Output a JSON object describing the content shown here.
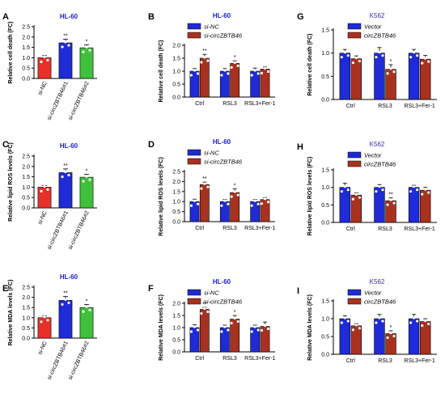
{
  "colors": {
    "red": "#e8302a",
    "blue": "#1f2bd6",
    "green": "#3fbf3a",
    "brown": "#a8321f",
    "title_hl60": "#1a1acc",
    "title_k562": "#3a2aa0",
    "dot": "#ffffff",
    "star": "#ff5a5a"
  },
  "chart_data": [
    {
      "id": "A",
      "panel_label": "A",
      "type": "bar",
      "title": "HL-60",
      "ylabel": "Relative cell death (FC)",
      "ylim": [
        0,
        2.5
      ],
      "yticks": [
        "0.0",
        "0.5",
        "1.0",
        "1.5",
        "2.0",
        "2.5"
      ],
      "categories": [
        "si-NC",
        "si-circZBTB46#1",
        "si-circZBTB46#2"
      ],
      "values": [
        1.0,
        1.72,
        1.48
      ],
      "errors": [
        0.1,
        0.18,
        0.15
      ],
      "stars": [
        "",
        "**",
        "*"
      ],
      "colors": [
        "red",
        "blue",
        "green"
      ]
    },
    {
      "id": "B",
      "panel_label": "B",
      "type": "bar",
      "title": "HL-60",
      "ylabel": "Relative cell death (FC)",
      "ylim": [
        0,
        2.0
      ],
      "yticks": [
        "0.0",
        "0.5",
        "1.0",
        "1.5",
        "2.0"
      ],
      "categories": [
        "Ctrl",
        "RSL3",
        "RSL3+Fer-1"
      ],
      "series": [
        {
          "name": "si-NC",
          "values": [
            1.0,
            1.0,
            1.0
          ],
          "errors": [
            0.1,
            0.1,
            0.12
          ],
          "stars": [
            "",
            "",
            ""
          ]
        },
        {
          "name": "si-circZBTB46",
          "values": [
            1.5,
            1.3,
            1.08
          ],
          "errors": [
            0.15,
            0.1,
            0.08
          ],
          "stars": [
            "**",
            "*",
            ""
          ]
        }
      ],
      "colors": [
        "blue",
        "brown"
      ]
    },
    {
      "id": "G",
      "panel_label": "G",
      "type": "bar",
      "title": "K562",
      "ylabel": "Relative cell death (FC)",
      "ylim": [
        0,
        1.5
      ],
      "yticks": [
        "0.0",
        "0.5",
        "1.0",
        "1.5"
      ],
      "categories": [
        "Ctrl",
        "RSL3",
        "RSL3+Fer-1"
      ],
      "series": [
        {
          "name": "Vector",
          "values": [
            1.0,
            1.0,
            1.0
          ],
          "errors": [
            0.08,
            0.12,
            0.08
          ],
          "stars": [
            "",
            "",
            ""
          ]
        },
        {
          "name": "circZBTB46",
          "values": [
            0.88,
            0.65,
            0.87
          ],
          "errors": [
            0.06,
            0.1,
            0.08
          ],
          "stars": [
            "",
            "*",
            ""
          ]
        }
      ],
      "colors": [
        "blue",
        "brown"
      ]
    },
    {
      "id": "C",
      "panel_label": "C",
      "type": "bar",
      "title": "HL-60",
      "ylabel": "Relative lipid ROS levels (FC)",
      "ylim": [
        0,
        2.5
      ],
      "yticks": [
        "0.0",
        "0.5",
        "1.0",
        "1.5",
        "2.0",
        "2.5"
      ],
      "categories": [
        "si-NC",
        "si-circZBTB46#1",
        "si-circZBTB46#2"
      ],
      "values": [
        1.0,
        1.7,
        1.48
      ],
      "errors": [
        0.08,
        0.18,
        0.14
      ],
      "stars": [
        "",
        "**",
        "*"
      ],
      "colors": [
        "red",
        "blue",
        "green"
      ]
    },
    {
      "id": "D",
      "panel_label": "D",
      "type": "bar",
      "title": "HL-60",
      "ylabel": "Relative lipid ROS levels (FC)",
      "ylim": [
        0,
        2.5
      ],
      "yticks": [
        "0.0",
        "0.5",
        "1.0",
        "1.5",
        "2.0",
        "2.5"
      ],
      "categories": [
        "Ctrl",
        "RSL3",
        "RSL3+Fer-1"
      ],
      "series": [
        {
          "name": "si-NC",
          "values": [
            1.0,
            1.0,
            1.0
          ],
          "errors": [
            0.12,
            0.1,
            0.1
          ],
          "stars": [
            "",
            "",
            ""
          ]
        },
        {
          "name": "si-circZBTB46",
          "values": [
            1.85,
            1.45,
            1.1
          ],
          "errors": [
            0.12,
            0.18,
            0.1
          ],
          "stars": [
            "**",
            "*",
            ""
          ]
        }
      ],
      "colors": [
        "blue",
        "brown"
      ]
    },
    {
      "id": "H",
      "panel_label": "H",
      "type": "bar",
      "title": "K562",
      "ylabel": "Relative lipid ROS levels (FC)",
      "ylim": [
        0,
        1.5
      ],
      "yticks": [
        "0.0",
        "0.5",
        "1.0",
        "1.5"
      ],
      "categories": [
        "Ctrl",
        "RSL3",
        "RSL3+Fer-1"
      ],
      "series": [
        {
          "name": "Vector",
          "values": [
            1.0,
            1.0,
            1.0
          ],
          "errors": [
            0.12,
            0.08,
            0.06
          ],
          "stars": [
            "",
            "",
            ""
          ]
        },
        {
          "name": "circZBTB46",
          "values": [
            0.78,
            0.62,
            0.92
          ],
          "errors": [
            0.06,
            0.08,
            0.08
          ],
          "stars": [
            "",
            "**",
            ""
          ]
        }
      ],
      "colors": [
        "blue",
        "brown"
      ]
    },
    {
      "id": "E",
      "panel_label": "E",
      "type": "bar",
      "title": "HL-60",
      "ylabel": "Relative MDA levels (FC)",
      "ylim": [
        0,
        2.5
      ],
      "yticks": [
        "0.0",
        "0.5",
        "1.0",
        "1.5",
        "2.0",
        "2.5"
      ],
      "categories": [
        "si-NC",
        "si-circZBTB46#1",
        "si-circZBTB46#2"
      ],
      "values": [
        1.0,
        1.85,
        1.5
      ],
      "errors": [
        0.08,
        0.2,
        0.15
      ],
      "stars": [
        "",
        "**",
        "*"
      ],
      "colors": [
        "red",
        "blue",
        "green"
      ]
    },
    {
      "id": "F",
      "panel_label": "F",
      "type": "bar",
      "title": "HL-60",
      "ylabel": "Relative MDA levels (FC)",
      "ylim": [
        0,
        2.0
      ],
      "yticks": [
        "0.0",
        "0.5",
        "1.0",
        "1.5",
        "2.0"
      ],
      "categories": [
        "Ctrl",
        "RSL3",
        "RSL3+Fer-1"
      ],
      "series": [
        {
          "name": "si-NC",
          "values": [
            1.0,
            1.0,
            1.0
          ],
          "errors": [
            0.12,
            0.1,
            0.1
          ],
          "stars": [
            "",
            "",
            ""
          ]
        },
        {
          "name": "si-circZBTB46",
          "values": [
            1.75,
            1.35,
            1.05
          ],
          "errors": [
            0.08,
            0.15,
            0.18
          ],
          "stars": [
            "**",
            "*",
            ""
          ]
        }
      ],
      "colors": [
        "blue",
        "brown"
      ]
    },
    {
      "id": "I",
      "panel_label": "I",
      "type": "bar",
      "title": "K562",
      "ylabel": "Relative MDA levels (FC)",
      "ylim": [
        0,
        1.5
      ],
      "yticks": [
        "0.0",
        "0.5",
        "1.0",
        "1.5"
      ],
      "categories": [
        "Ctrl",
        "RSL3",
        "RSL3+Fer-1"
      ],
      "series": [
        {
          "name": "Vector",
          "values": [
            1.0,
            1.0,
            1.0
          ],
          "errors": [
            0.08,
            0.12,
            0.12
          ],
          "stars": [
            "",
            "",
            ""
          ]
        },
        {
          "name": "circZBTB46",
          "values": [
            0.8,
            0.58,
            0.92
          ],
          "errors": [
            0.06,
            0.08,
            0.08
          ],
          "stars": [
            "",
            "*",
            ""
          ]
        }
      ],
      "colors": [
        "blue",
        "brown"
      ]
    }
  ]
}
